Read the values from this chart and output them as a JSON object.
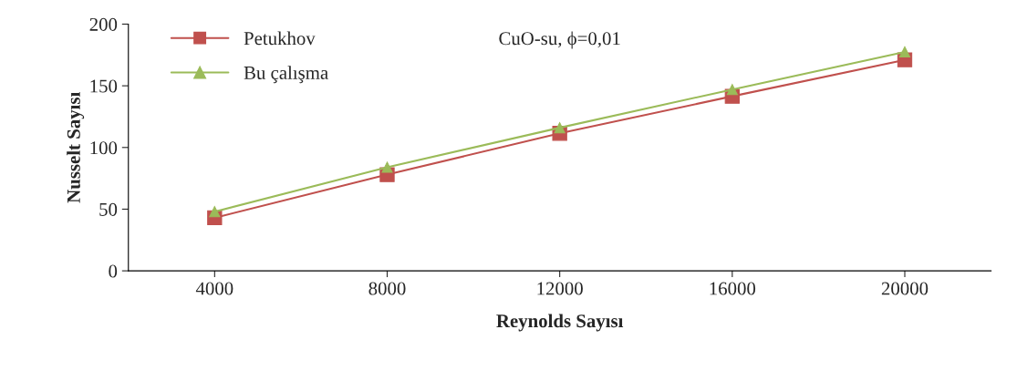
{
  "chart_data": {
    "type": "line",
    "xlabel": "Reynolds Sayısı",
    "ylabel": "Nusselt Sayısı",
    "categories": [
      "4000",
      "8000",
      "12000",
      "16000",
      "20000"
    ],
    "series": [
      {
        "name": "Petukhov",
        "color": "#c0504d",
        "marker": "square",
        "values": [
          43,
          78,
          111.5,
          141.5,
          171
        ]
      },
      {
        "name": "Bu çalışma",
        "color": "#9bbb59",
        "marker": "triangle",
        "values": [
          48,
          84,
          116,
          147,
          177.5
        ]
      }
    ],
    "ylim": [
      0,
      200
    ],
    "yticks": [
      0,
      50,
      100,
      150,
      200
    ],
    "grid": false,
    "legend": "top left",
    "annotations": [
      "CuO-su, ϕ=0,01"
    ]
  }
}
